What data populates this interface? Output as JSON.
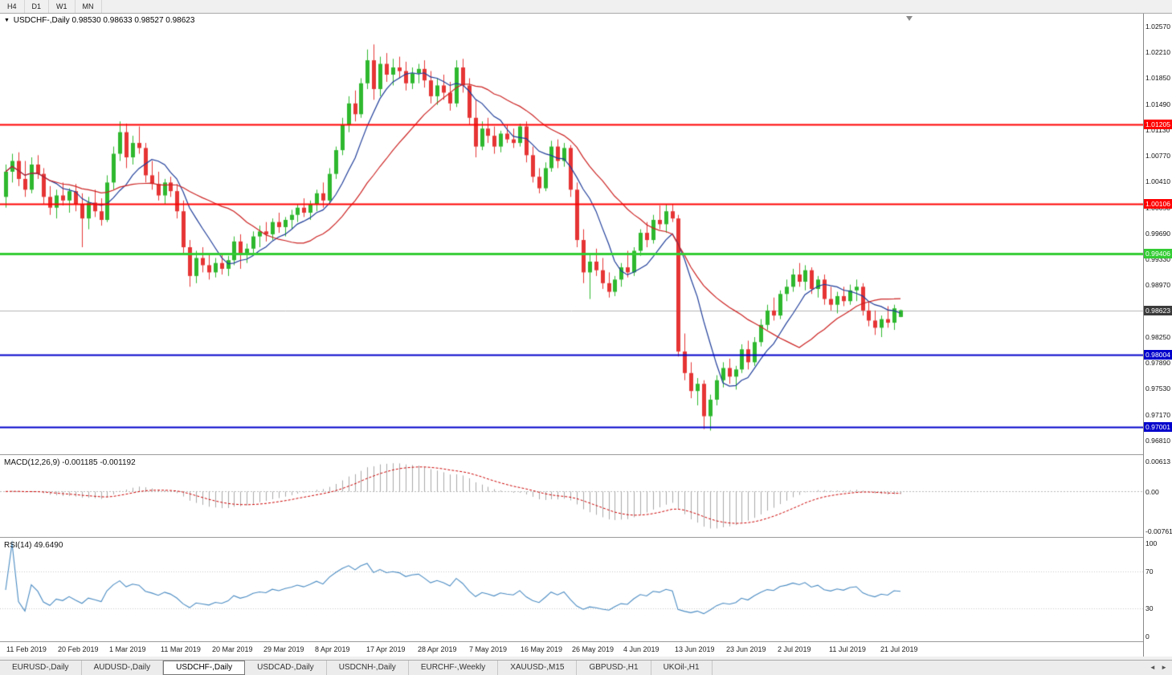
{
  "toolbar": {
    "timeframes": [
      "H4",
      "D1",
      "W1",
      "MN"
    ]
  },
  "icons": {
    "symbol_marker": "▼",
    "scroll_left": "◄",
    "scroll_right": "►"
  },
  "colors": {
    "bull": "#2eb82e",
    "bear": "#e63434",
    "ma_fast": "#1f3d99",
    "ma_slow": "#cc2222",
    "price_line": "#b4b4b4",
    "price_marker_bg": "#3a3a3a",
    "macd_hist": "#a8a8a8",
    "macd_signal": "#cc0000",
    "rsi_line": "#4a8bc2",
    "level_dotted": "#c8c8c8",
    "hline_red": "#ff0000",
    "hline_green": "#33cc33",
    "hline_blue": "#0000cc"
  },
  "chart": {
    "symbol_title": "USDCHF-,Daily",
    "ohlc_text": "0.98530 0.98633 0.98527 0.98623",
    "y_axis_ticks": [
      "1.02570",
      "1.02210",
      "1.01850",
      "1.01490",
      "1.01130",
      "1.00770",
      "1.00410",
      "1.00050",
      "0.99690",
      "0.99330",
      "0.98970",
      "0.98250",
      "0.97890",
      "0.97530",
      "0.97170",
      "0.96810"
    ],
    "hlines": [
      {
        "price": 1.01205,
        "label": "1.01205",
        "color": "#ff0000",
        "width": 2
      },
      {
        "price": 1.00106,
        "label": "1.00106",
        "color": "#ff0000",
        "width": 2
      },
      {
        "price": 0.99406,
        "label": "0.99406",
        "color": "#33cc33",
        "width": 3
      },
      {
        "price": 0.98004,
        "label": "0.98004",
        "color": "#0000cc",
        "width": 2
      },
      {
        "price": 0.97001,
        "label": "0.97001",
        "color": "#0000cc",
        "width": 2
      }
    ],
    "price_line": {
      "price": 0.98623,
      "label": "0.98623"
    },
    "candles": [
      [
        1.002,
        1.0065,
        1.0005,
        1.0055
      ],
      [
        1.0055,
        1.008,
        1.004,
        1.007
      ],
      [
        1.007,
        1.0082,
        1.0035,
        1.0045
      ],
      [
        1.0045,
        1.007,
        1.002,
        1.003
      ],
      [
        1.003,
        1.0075,
        1.0025,
        1.0065
      ],
      [
        1.0065,
        1.0078,
        1.0045,
        1.0052
      ],
      [
        1.0052,
        1.006,
        1.001,
        1.002
      ],
      [
        1.002,
        1.0035,
        0.9995,
        1.0005
      ],
      [
        1.0005,
        1.003,
        0.999,
        1.0022
      ],
      [
        1.0022,
        1.004,
        1.0008,
        1.0015
      ],
      [
        1.0015,
        1.0032,
        0.9998,
        1.0028
      ],
      [
        1.0028,
        1.0038,
        1.0,
        1.001
      ],
      [
        1.001,
        1.0025,
        0.995,
        0.999
      ],
      [
        0.999,
        1.002,
        0.9975,
        1.0012
      ],
      [
        1.0012,
        1.003,
        0.9992,
        1.0
      ],
      [
        1.0,
        1.0018,
        0.998,
        0.9988
      ],
      [
        0.9988,
        1.005,
        0.9985,
        1.004
      ],
      [
        1.004,
        1.009,
        1.003,
        1.008
      ],
      [
        1.008,
        1.0125,
        1.007,
        1.011
      ],
      [
        1.011,
        1.0122,
        1.006,
        1.0075
      ],
      [
        1.0075,
        1.0105,
        1.0065,
        1.0095
      ],
      [
        1.0095,
        1.0118,
        1.008,
        1.0088
      ],
      [
        1.0088,
        1.0095,
        1.004,
        1.005
      ],
      [
        1.005,
        1.007,
        1.003,
        1.0038
      ],
      [
        1.0038,
        1.0055,
        1.0015,
        1.0022
      ],
      [
        1.0022,
        1.0045,
        1.001,
        1.004
      ],
      [
        1.004,
        1.0048,
        1.002,
        1.0028
      ],
      [
        1.0028,
        1.0038,
        0.999,
        1.0
      ],
      [
        1.0,
        1.0015,
        0.994,
        0.995
      ],
      [
        0.995,
        0.996,
        0.9895,
        0.991
      ],
      [
        0.991,
        0.9945,
        0.99,
        0.9935
      ],
      [
        0.9935,
        0.995,
        0.9915,
        0.9925
      ],
      [
        0.9925,
        0.994,
        0.9905,
        0.9915
      ],
      [
        0.9915,
        0.9935,
        0.9908,
        0.9928
      ],
      [
        0.9928,
        0.9942,
        0.9912,
        0.992
      ],
      [
        0.992,
        0.9938,
        0.991,
        0.9932
      ],
      [
        0.9932,
        0.9965,
        0.9925,
        0.9958
      ],
      [
        0.9958,
        0.9968,
        0.992,
        0.994
      ],
      [
        0.994,
        0.9955,
        0.9928,
        0.9948
      ],
      [
        0.9948,
        0.9972,
        0.994,
        0.9965
      ],
      [
        0.9965,
        0.998,
        0.995,
        0.9972
      ],
      [
        0.9972,
        0.9985,
        0.9958,
        0.9968
      ],
      [
        0.9968,
        0.999,
        0.996,
        0.9985
      ],
      [
        0.9985,
        0.9998,
        0.997,
        0.9978
      ],
      [
        0.9978,
        0.9992,
        0.9965,
        0.9988
      ],
      [
        0.9988,
        1.0002,
        0.9975,
        0.9995
      ],
      [
        0.9995,
        1.001,
        0.9985,
        1.0005
      ],
      [
        1.0005,
        1.0018,
        0.9992,
        0.9998
      ],
      [
        0.9998,
        1.0015,
        0.9988,
        1.001
      ],
      [
        1.001,
        1.003,
        1.0,
        1.0025
      ],
      [
        1.0025,
        1.004,
        1.0005,
        1.0015
      ],
      [
        1.0015,
        1.006,
        1.001,
        1.0052
      ],
      [
        1.0052,
        1.009,
        1.0045,
        1.0085
      ],
      [
        1.0085,
        1.013,
        1.0078,
        1.012
      ],
      [
        1.012,
        1.016,
        1.011,
        1.015
      ],
      [
        1.015,
        1.0168,
        1.0125,
        1.0135
      ],
      [
        1.0135,
        1.0185,
        1.013,
        1.0178
      ],
      [
        1.0178,
        1.0225,
        1.017,
        1.021
      ],
      [
        1.021,
        1.0232,
        1.0155,
        1.017
      ],
      [
        1.017,
        1.0215,
        1.016,
        1.0205
      ],
      [
        1.0205,
        1.022,
        1.018,
        1.019
      ],
      [
        1.019,
        1.0212,
        1.0175,
        1.02
      ],
      [
        1.02,
        1.0215,
        1.0185,
        1.0195
      ],
      [
        1.0195,
        1.0208,
        1.0168,
        1.0178
      ],
      [
        1.0178,
        1.02,
        1.017,
        1.0192
      ],
      [
        1.0192,
        1.0205,
        1.0178,
        1.0198
      ],
      [
        1.0198,
        1.021,
        1.0172,
        1.0182
      ],
      [
        1.0182,
        1.0195,
        1.015,
        1.016
      ],
      [
        1.016,
        1.0185,
        1.0148,
        1.0175
      ],
      [
        1.0175,
        1.019,
        1.0155,
        1.0165
      ],
      [
        1.0165,
        1.018,
        1.014,
        1.015
      ],
      [
        1.015,
        1.021,
        1.0145,
        1.02
      ],
      [
        1.02,
        1.0212,
        1.0165,
        1.0175
      ],
      [
        1.0175,
        1.0185,
        1.012,
        1.013
      ],
      [
        1.013,
        1.0155,
        1.0075,
        1.009
      ],
      [
        1.009,
        1.0125,
        1.0085,
        1.0115
      ],
      [
        1.0115,
        1.013,
        1.0095,
        1.0105
      ],
      [
        1.0105,
        1.0118,
        1.008,
        1.009
      ],
      [
        1.009,
        1.0112,
        1.0082,
        1.0108
      ],
      [
        1.0108,
        1.012,
        1.0095,
        1.01
      ],
      [
        1.01,
        1.0115,
        1.0088,
        1.0095
      ],
      [
        1.0095,
        1.0122,
        1.009,
        1.0118
      ],
      [
        1.0118,
        1.0125,
        1.0068,
        1.0078
      ],
      [
        1.0078,
        1.009,
        1.004,
        1.0048
      ],
      [
        1.0048,
        1.006,
        1.0025,
        1.0032
      ],
      [
        1.0032,
        1.0068,
        1.0028,
        1.006
      ],
      [
        1.006,
        1.0098,
        1.0055,
        1.009
      ],
      [
        1.009,
        1.01,
        1.006,
        1.007
      ],
      [
        1.007,
        1.0095,
        1.0062,
        1.0088
      ],
      [
        1.0088,
        1.0092,
        1.002,
        1.003
      ],
      [
        1.003,
        1.004,
        0.995,
        0.996
      ],
      [
        0.996,
        0.9975,
        0.99,
        0.9915
      ],
      [
        0.9915,
        0.9942,
        0.9878,
        0.993
      ],
      [
        0.993,
        0.9948,
        0.991,
        0.9918
      ],
      [
        0.9918,
        0.9935,
        0.9892,
        0.99
      ],
      [
        0.99,
        0.9915,
        0.988,
        0.9888
      ],
      [
        0.9888,
        0.991,
        0.9882,
        0.9905
      ],
      [
        0.9905,
        0.9928,
        0.9895,
        0.9922
      ],
      [
        0.9922,
        0.9945,
        0.9908,
        0.9915
      ],
      [
        0.9915,
        0.995,
        0.991,
        0.9945
      ],
      [
        0.9945,
        0.9975,
        0.9938,
        0.997
      ],
      [
        0.997,
        0.9985,
        0.995,
        0.996
      ],
      [
        0.996,
        0.9995,
        0.9955,
        0.9988
      ],
      [
        0.9988,
        1.0008,
        0.9975,
        0.9982
      ],
      [
        0.9982,
        1.001,
        0.997,
        1.0
      ],
      [
        1.0,
        1.001,
        0.9985,
        0.999
      ],
      [
        0.999,
        0.9995,
        0.9798,
        0.9805
      ],
      [
        0.9805,
        0.983,
        0.9765,
        0.9775
      ],
      [
        0.9775,
        0.979,
        0.974,
        0.975
      ],
      [
        0.975,
        0.9768,
        0.973,
        0.976
      ],
      [
        0.976,
        0.9765,
        0.9697,
        0.9715
      ],
      [
        0.9715,
        0.9745,
        0.9695,
        0.9738
      ],
      [
        0.9738,
        0.9772,
        0.973,
        0.9765
      ],
      [
        0.9765,
        0.979,
        0.9755,
        0.9782
      ],
      [
        0.9782,
        0.9795,
        0.976,
        0.977
      ],
      [
        0.977,
        0.9785,
        0.9752,
        0.978
      ],
      [
        0.978,
        0.9815,
        0.9775,
        0.9808
      ],
      [
        0.9808,
        0.982,
        0.978,
        0.979
      ],
      [
        0.979,
        0.9825,
        0.9785,
        0.9818
      ],
      [
        0.9818,
        0.985,
        0.9812,
        0.9842
      ],
      [
        0.9842,
        0.987,
        0.9835,
        0.9862
      ],
      [
        0.9862,
        0.988,
        0.9848,
        0.9855
      ],
      [
        0.9855,
        0.989,
        0.985,
        0.9885
      ],
      [
        0.9885,
        0.9905,
        0.9875,
        0.9895
      ],
      [
        0.9895,
        0.992,
        0.9888,
        0.9912
      ],
      [
        0.9912,
        0.9928,
        0.9895,
        0.9902
      ],
      [
        0.9902,
        0.9925,
        0.989,
        0.9918
      ],
      [
        0.9918,
        0.9922,
        0.9885,
        0.9892
      ],
      [
        0.9892,
        0.991,
        0.988,
        0.9905
      ],
      [
        0.9905,
        0.9912,
        0.987,
        0.9878
      ],
      [
        0.9878,
        0.9895,
        0.9862,
        0.987
      ],
      [
        0.987,
        0.9888,
        0.9858,
        0.9882
      ],
      [
        0.9882,
        0.9895,
        0.9868,
        0.9875
      ],
      [
        0.9875,
        0.9898,
        0.987,
        0.989
      ],
      [
        0.989,
        0.9905,
        0.9875,
        0.9895
      ],
      [
        0.9895,
        0.99,
        0.9855,
        0.9862
      ],
      [
        0.9862,
        0.9875,
        0.984,
        0.9848
      ],
      [
        0.9848,
        0.9862,
        0.9828,
        0.9838
      ],
      [
        0.9838,
        0.9855,
        0.9825,
        0.985
      ],
      [
        0.985,
        0.9868,
        0.9838,
        0.9845
      ],
      [
        0.9845,
        0.987,
        0.9835,
        0.9865
      ],
      [
        0.9853,
        0.98633,
        0.98527,
        0.98623
      ]
    ]
  },
  "macd": {
    "name": "MACD(12,26,9)",
    "value_main": "-0.001185",
    "value_signal": "-0.001192",
    "ticks": [
      "0.00613",
      "0.00",
      "-0.00761"
    ]
  },
  "rsi": {
    "name": "RSI(14)",
    "value": "49.6490",
    "ticks": [
      "100",
      "70",
      "30",
      "0"
    ],
    "levels": [
      70,
      30
    ]
  },
  "x_axis": {
    "labels": [
      "11 Feb 2019",
      "20 Feb 2019",
      "1 Mar 2019",
      "11 Mar 2019",
      "20 Mar 2019",
      "29 Mar 2019",
      "8 Apr 2019",
      "17 Apr 2019",
      "28 Apr 2019",
      "7 May 2019",
      "16 May 2019",
      "26 May 2019",
      "4 Jun 2019",
      "13 Jun 2019",
      "23 Jun 2019",
      "2 Jul 2019",
      "11 Jul 2019",
      "21 Jul 2019"
    ]
  },
  "tabs": {
    "active_index": 2,
    "items": [
      {
        "label": "EURUSD-,Daily"
      },
      {
        "label": "AUDUSD-,Daily"
      },
      {
        "label": "USDCHF-,Daily"
      },
      {
        "label": "USDCAD-,Daily"
      },
      {
        "label": "USDCNH-,Daily"
      },
      {
        "label": "EURCHF-,Weekly"
      },
      {
        "label": "XAUUSD-,M15"
      },
      {
        "label": "GBPUSD-,H1"
      },
      {
        "label": "UKOil-,H1"
      }
    ]
  }
}
